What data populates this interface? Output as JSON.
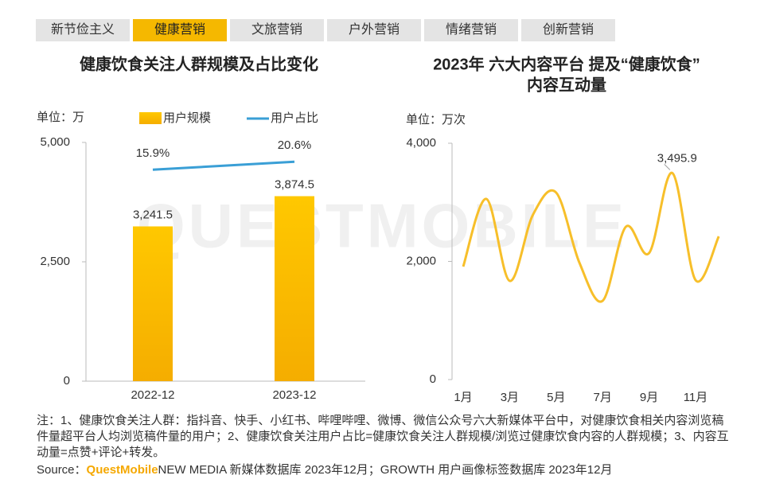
{
  "tabs": [
    "新节俭主义",
    "健康营销",
    "文旅营销",
    "户外营销",
    "情绪营销",
    "创新营销"
  ],
  "active_tab": 1,
  "watermark": "QUESTMOBILE",
  "chart_data": [
    {
      "type": "bar_line",
      "title": "健康饮食关注人群规模及占比变化",
      "unit_label": "单位：万",
      "categories": [
        "2022-12",
        "2023-12"
      ],
      "series": [
        {
          "name": "用户规模",
          "color": "#f7bb00",
          "values": [
            3241.5,
            3874.5
          ],
          "value_labels": [
            "3,241.5",
            "3,874.5"
          ]
        },
        {
          "name": "用户占比",
          "color": "#3a9fd6",
          "axis": "y2",
          "values": [
            15.9,
            20.6
          ],
          "value_labels": [
            "15.9%",
            "20.6%"
          ]
        }
      ],
      "ylim": [
        0,
        5000
      ],
      "yticks": [
        0,
        {
          "value": 2500,
          "label": "2,500"
        },
        {
          "value": 5000,
          "label": "5,000"
        }
      ],
      "y2lim": [
        -109,
        32
      ]
    },
    {
      "type": "line",
      "title": [
        "2023年 六大内容平台 提及“健康饮食”",
        "内容互动量"
      ],
      "unit_label": "单位：万次",
      "categories": [
        "1月",
        null,
        "3月",
        null,
        "5月",
        null,
        "7月",
        null,
        "9月",
        null,
        "11月",
        null
      ],
      "values": [
        1912,
        3057,
        1670,
        2788,
        3165,
        1980,
        1333,
        2586,
        2141,
        3495.9,
        1683,
        2424
      ],
      "value_labels": [
        null,
        null,
        null,
        null,
        null,
        null,
        null,
        null,
        null,
        "3,495.9",
        null,
        null
      ],
      "color": "#f7bf2a",
      "ylim": [
        0,
        4000
      ],
      "yticks": [
        0,
        {
          "value": 2000,
          "label": "2,000"
        },
        {
          "value": 4000,
          "label": "4,000"
        }
      ]
    }
  ],
  "note": "注：1、健康饮食关注人群：指抖音、快手、小红书、哔哩哔哩、微博、微信公众号六大新媒体平台中，对健康饮食相关内容浏览稿件量超平台人均浏览稿件量的用户；2、健康饮食关注用户占比=健康饮食关注人群规模/浏览过健康饮食内容的人群规模；3、内容互动量=点赞+评论+转发。",
  "source": {
    "label": "Source：",
    "brand": "QuestMobile",
    "text": "NEW MEDIA 新媒体数据库 2023年12月；GROWTH 用户画像标签数据库 2023年12月"
  }
}
